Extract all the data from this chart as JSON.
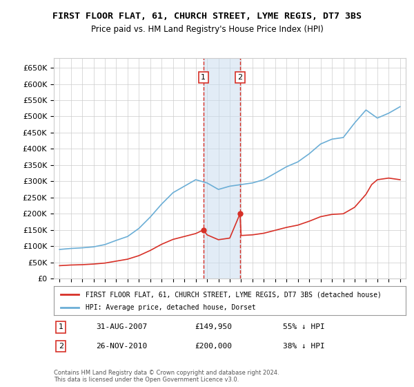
{
  "title": "FIRST FLOOR FLAT, 61, CHURCH STREET, LYME REGIS, DT7 3BS",
  "subtitle": "Price paid vs. HM Land Registry's House Price Index (HPI)",
  "legend_line1": "FIRST FLOOR FLAT, 61, CHURCH STREET, LYME REGIS, DT7 3BS (detached house)",
  "legend_line2": "HPI: Average price, detached house, Dorset",
  "transaction1_date": "31-AUG-2007",
  "transaction1_price": "£149,950",
  "transaction1_hpi": "55% ↓ HPI",
  "transaction2_date": "26-NOV-2010",
  "transaction2_price": "£200,000",
  "transaction2_hpi": "38% ↓ HPI",
  "copyright": "Contains HM Land Registry data © Crown copyright and database right 2024.\nThis data is licensed under the Open Government Licence v3.0.",
  "ylim": [
    0,
    680000
  ],
  "yticks": [
    0,
    50000,
    100000,
    150000,
    200000,
    250000,
    300000,
    350000,
    400000,
    450000,
    500000,
    550000,
    600000,
    650000
  ],
  "hpi_color": "#6baed6",
  "price_color": "#d73027",
  "transaction_vline_color": "#d73027",
  "transaction_band_color": "#c6dbef",
  "background_color": "#ffffff",
  "grid_color": "#cccccc",
  "years": [
    1995,
    1996,
    1997,
    1998,
    1999,
    2000,
    2001,
    2002,
    2003,
    2004,
    2005,
    2006,
    2007,
    2008,
    2009,
    2010,
    2011,
    2012,
    2013,
    2014,
    2015,
    2016,
    2017,
    2018,
    2019,
    2020,
    2021,
    2022,
    2023,
    2024,
    2025
  ],
  "hpi_values": [
    90000,
    93000,
    95000,
    98000,
    105000,
    118000,
    130000,
    155000,
    190000,
    230000,
    265000,
    285000,
    305000,
    295000,
    275000,
    285000,
    290000,
    295000,
    305000,
    325000,
    345000,
    360000,
    385000,
    415000,
    430000,
    435000,
    480000,
    520000,
    495000,
    510000,
    530000
  ],
  "price_values_x": [
    1995.0,
    1996.0,
    1997.0,
    1998.0,
    1999.0,
    2000.0,
    2001.0,
    2002.0,
    2003.0,
    2004.0,
    2005.0,
    2006.0,
    2007.0,
    2007.67,
    2008.0,
    2009.0,
    2010.0,
    2010.9,
    2011.0,
    2012.0,
    2013.0,
    2014.0,
    2015.0,
    2016.0,
    2017.0,
    2018.0,
    2019.0,
    2020.0,
    2021.0,
    2022.0,
    2022.5,
    2023.0,
    2024.0,
    2025.0
  ],
  "price_values_y": [
    40000,
    42000,
    43000,
    45000,
    48000,
    54000,
    60000,
    71000,
    87000,
    106000,
    121000,
    130000,
    139000,
    149950,
    135000,
    120000,
    125000,
    200000,
    133000,
    135000,
    140000,
    149000,
    158000,
    165000,
    177000,
    191000,
    198000,
    200000,
    220000,
    260000,
    290000,
    305000,
    310000,
    305000
  ],
  "transaction1_x": 2007.67,
  "transaction2_x": 2010.9,
  "xlim_start": 1994.5,
  "xlim_end": 2025.5
}
